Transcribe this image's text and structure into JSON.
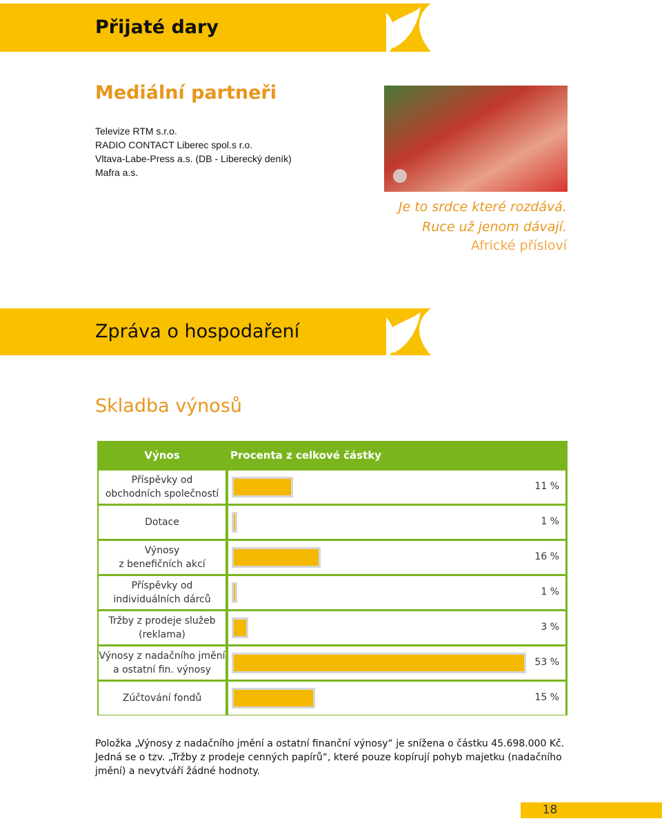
{
  "header": {
    "title": "Přijaté dary"
  },
  "media": {
    "title": "Mediální partneři",
    "items": [
      "Televize RTM s.r.o.",
      "RADIO CONTACT Liberec spol.s r.o.",
      "Vltava-Labe-Press a.s. (DB - Liberecký deník)",
      "Mafra a.s."
    ]
  },
  "quote": {
    "lines": [
      "Je to srdce které rozdává.",
      "Ruce už jenom dávají."
    ],
    "source": "Africké přísloví"
  },
  "report": {
    "title": "Zpráva o hospodaření",
    "subtitle": "Skladba výnosů"
  },
  "table": {
    "headers": [
      "Výnos",
      "Procenta z celkové částky"
    ],
    "rows": [
      {
        "label": "Příspěvky od\nobchodních společností",
        "value": 11,
        "value_label": "11 %"
      },
      {
        "label": "Dotace",
        "value": 1,
        "value_label": "1 %"
      },
      {
        "label": "Výnosy\nz benefičních akcí",
        "value": 16,
        "value_label": "16 %"
      },
      {
        "label": "Příspěvky od\nindividuálních dárců",
        "value": 1,
        "value_label": "1 %"
      },
      {
        "label": "Tržby z prodeje služeb\n(reklama)",
        "value": 3,
        "value_label": "3 %"
      },
      {
        "label": "Výnosy z nadačního jmění\na ostatní fin. výnosy",
        "value": 53,
        "value_label": "53 %"
      },
      {
        "label": "Zúčtování fondů",
        "value": 15,
        "value_label": "15 %"
      }
    ]
  },
  "footnote": "Položka „Výnosy z nadačního jmění a ostatní finanční výnosy“ je snížena o částku 45.698.000 Kč. Jedná se o tzv. „Tržby z prodeje cenných papírů“, které pouze kopírují pohyb majetku (nadačního jmění) a nevytváří žádné hodnoty.",
  "page_number": "18"
}
